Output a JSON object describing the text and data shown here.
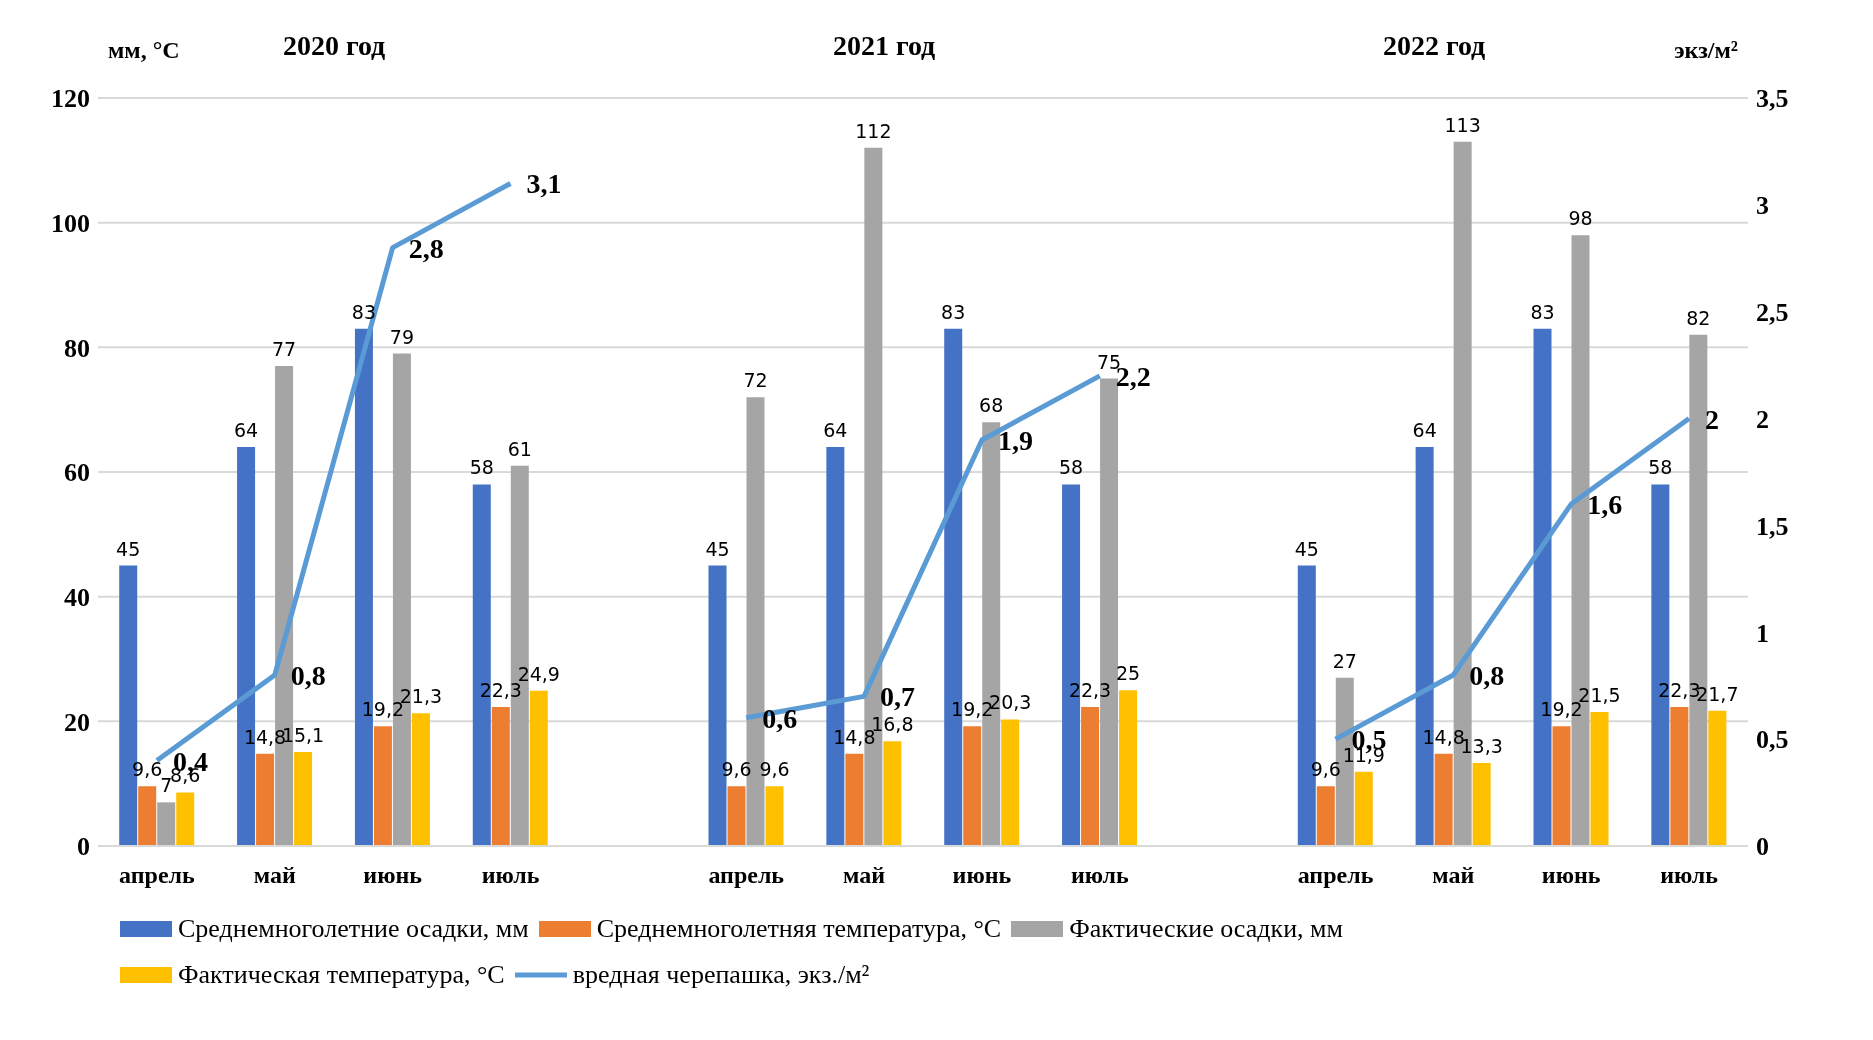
{
  "chart_data": {
    "type": "bar",
    "ylabel": "мм, °C",
    "y2label": "экз/м²",
    "annotations": [
      "2020 год",
      "2021 год",
      "2022 год"
    ],
    "categories": [
      "апрель",
      "май",
      "июнь",
      "июль",
      null,
      "апрель",
      "май",
      "июнь",
      "июль",
      null,
      "апрель",
      "май",
      "июнь",
      "июль"
    ],
    "series": [
      {
        "name": "Среднемноголетние осадки, мм",
        "color": "#4472c4",
        "values": [
          45,
          64,
          83,
          58,
          null,
          45,
          64,
          83,
          58,
          null,
          45,
          64,
          83,
          58
        ],
        "value_labels": [
          "45",
          "64",
          "83",
          "58",
          null,
          "45",
          "64",
          "83",
          "58",
          null,
          "45",
          "64",
          "83",
          "58"
        ]
      },
      {
        "name": "Среднемноголетняя температура, °C",
        "color": "#ed7d31",
        "values": [
          9.6,
          14.8,
          19.2,
          22.3,
          null,
          9.6,
          14.8,
          19.2,
          22.3,
          null,
          9.6,
          14.8,
          19.2,
          22.3
        ],
        "value_labels": [
          "9,6",
          "14,8",
          "19,2",
          "22,3",
          null,
          "9,6",
          "14,8",
          "19,2",
          "22,3",
          null,
          "9,6",
          "14,8",
          "19,2",
          "22,3"
        ]
      },
      {
        "name": "Фактические осадки, мм",
        "color": "#a5a5a5",
        "values": [
          7,
          77,
          79,
          61,
          null,
          72,
          112,
          68,
          75,
          null,
          27,
          113,
          98,
          82
        ],
        "value_labels": [
          "7",
          "77",
          "79",
          "61",
          null,
          "72",
          "112",
          "68",
          "75",
          null,
          "27",
          "113",
          "98",
          "82"
        ]
      },
      {
        "name": "Фактическая температура, °C",
        "color": "#ffc000",
        "values": [
          8.6,
          15.1,
          21.3,
          24.9,
          null,
          9.6,
          16.8,
          20.3,
          25,
          null,
          11.9,
          13.3,
          21.5,
          21.7
        ],
        "value_labels": [
          "8,6",
          "15,1",
          "21,3",
          "24,9",
          null,
          "9,6",
          "16,8",
          "20,3",
          "25",
          null,
          "11,9",
          "13,3",
          "21,5",
          "21,7"
        ]
      },
      {
        "name": "вредная черепашка, экз./м²",
        "type": "line",
        "axis": "y2",
        "color": "#5b9bd5",
        "values": [
          0.4,
          0.8,
          2.8,
          3.1,
          null,
          0.6,
          0.7,
          1.9,
          2.2,
          null,
          0.5,
          0.8,
          1.6,
          2
        ],
        "value_labels": [
          "0,4",
          "0,8",
          "2,8",
          "3,1",
          null,
          "0,6",
          "0,7",
          "1,9",
          "2,2",
          null,
          "0,5",
          "0,8",
          "1,6",
          "2"
        ]
      }
    ],
    "ylim": [
      0,
      120
    ],
    "yticks": [
      0,
      20,
      40,
      60,
      80,
      100,
      120
    ],
    "y2lim": [
      0,
      3.5
    ],
    "y2ticks": [
      0,
      {
        "value": 0.5,
        "label": "0,5"
      },
      1,
      {
        "value": 1.5,
        "label": "1,5"
      },
      2,
      {
        "value": 2.5,
        "label": "2,5"
      },
      3,
      {
        "value": 3.5,
        "label": "3,5"
      }
    ],
    "grid": "y",
    "legend": "bottom",
    "marker": "none",
    "line_style": "solid"
  }
}
